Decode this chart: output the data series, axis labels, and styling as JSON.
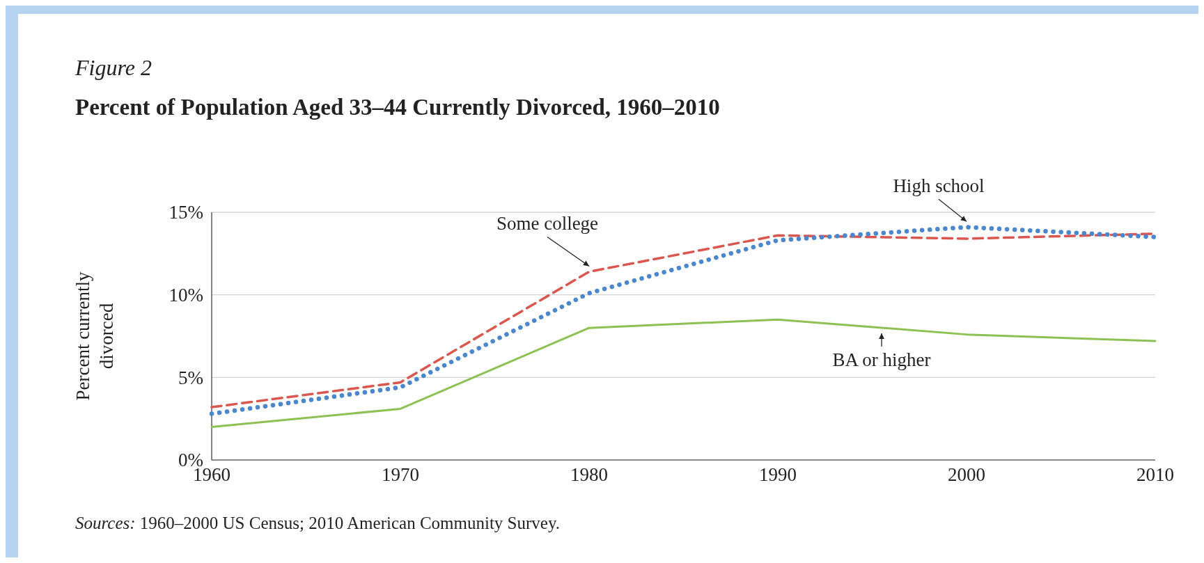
{
  "chart_data": {
    "type": "line",
    "subtitle": "Figure 2",
    "title": "Percent of Population Aged 33–44 Currently Divorced, 1960–2010",
    "ylabel": "Percent currently divorced",
    "x": [
      1960,
      1970,
      1980,
      1990,
      2000,
      2010
    ],
    "xlim": [
      1960,
      2010
    ],
    "xticks": [
      1960,
      1970,
      1980,
      1990,
      2000,
      2010
    ],
    "ylim": [
      0,
      15
    ],
    "yticks": [
      {
        "value": 0,
        "label": "0%"
      },
      {
        "value": 5,
        "label": "5%"
      },
      {
        "value": 10,
        "label": "10%"
      },
      {
        "value": 15,
        "label": "15%"
      }
    ],
    "grid": "y",
    "series": [
      {
        "name": "Some college",
        "color": "#d9574f",
        "line_style": "dashed",
        "values": [
          3.2,
          4.7,
          11.4,
          13.6,
          13.4,
          13.7
        ]
      },
      {
        "name": "High school",
        "color": "#4b87cc",
        "line_style": "dotted",
        "values": [
          2.8,
          4.4,
          10.1,
          13.3,
          14.1,
          13.5
        ]
      },
      {
        "name": "BA or higher",
        "color": "#8dc153",
        "line_style": "solid",
        "values": [
          2.0,
          3.1,
          8.0,
          8.5,
          7.6,
          7.2
        ]
      }
    ],
    "annotations": [
      "Sources: 1960–2000 US Census; 2010 American Community Survey."
    ]
  }
}
